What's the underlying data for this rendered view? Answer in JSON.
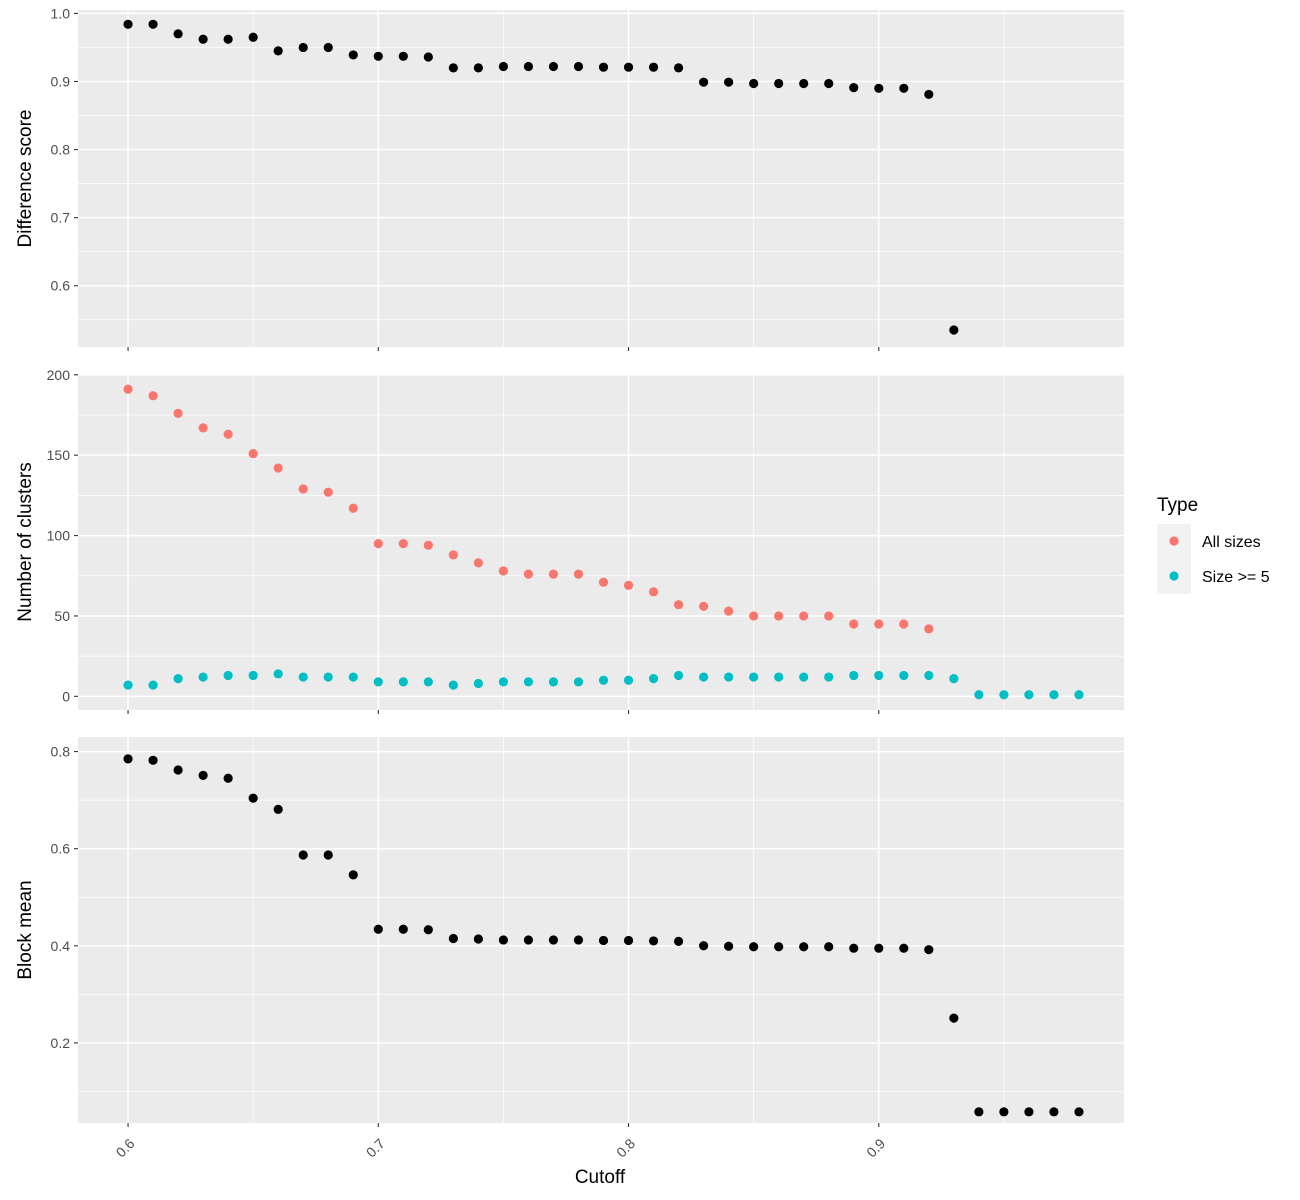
{
  "chart_data": {
    "type": "scatter",
    "x_shared": {
      "label": "Cutoff",
      "range": [
        0.58,
        0.998
      ],
      "ticks": [
        0.6,
        0.7,
        0.8,
        0.9
      ],
      "tick_labels": [
        "0.6",
        "0.7",
        "0.8",
        "0.9"
      ],
      "tick_label_rotation_deg": -45
    },
    "grid": true,
    "panel_background": "#ebebeb",
    "grid_color": "#ffffff",
    "panels": [
      {
        "ylabel": "Difference score",
        "ylim": [
          0.51,
          1.005
        ],
        "yticks": [
          0.6,
          0.7,
          0.8,
          0.9,
          1.0
        ],
        "ytick_labels": [
          "0.6",
          "0.7",
          "0.8",
          "0.9",
          "1.0"
        ],
        "series": [
          {
            "color": "#000000",
            "points": [
              [
                0.6,
                0.984
              ],
              [
                0.61,
                0.984
              ],
              [
                0.62,
                0.97
              ],
              [
                0.63,
                0.962
              ],
              [
                0.64,
                0.962
              ],
              [
                0.65,
                0.965
              ],
              [
                0.66,
                0.945
              ],
              [
                0.67,
                0.95
              ],
              [
                0.68,
                0.95
              ],
              [
                0.69,
                0.939
              ],
              [
                0.7,
                0.937
              ],
              [
                0.71,
                0.937
              ],
              [
                0.72,
                0.936
              ],
              [
                0.73,
                0.92
              ],
              [
                0.74,
                0.92
              ],
              [
                0.75,
                0.922
              ],
              [
                0.76,
                0.922
              ],
              [
                0.77,
                0.922
              ],
              [
                0.78,
                0.922
              ],
              [
                0.79,
                0.921
              ],
              [
                0.8,
                0.921
              ],
              [
                0.81,
                0.921
              ],
              [
                0.82,
                0.92
              ],
              [
                0.83,
                0.899
              ],
              [
                0.84,
                0.899
              ],
              [
                0.85,
                0.897
              ],
              [
                0.86,
                0.897
              ],
              [
                0.87,
                0.897
              ],
              [
                0.88,
                0.897
              ],
              [
                0.89,
                0.891
              ],
              [
                0.9,
                0.89
              ],
              [
                0.91,
                0.89
              ],
              [
                0.92,
                0.881
              ],
              [
                0.93,
                0.535
              ]
            ]
          }
        ]
      },
      {
        "ylabel": "Number of clusters",
        "ylim": [
          -8.5,
          200.5
        ],
        "yticks": [
          0,
          50,
          100,
          150,
          200
        ],
        "ytick_labels": [
          "0",
          "50",
          "100",
          "150",
          "200"
        ],
        "series": [
          {
            "name": "All sizes",
            "color": "#f8766d",
            "points": [
              [
                0.6,
                191
              ],
              [
                0.61,
                187
              ],
              [
                0.62,
                176
              ],
              [
                0.63,
                167
              ],
              [
                0.64,
                163
              ],
              [
                0.65,
                151
              ],
              [
                0.66,
                142
              ],
              [
                0.67,
                129
              ],
              [
                0.68,
                127
              ],
              [
                0.69,
                117
              ],
              [
                0.7,
                95
              ],
              [
                0.71,
                95
              ],
              [
                0.72,
                94
              ],
              [
                0.73,
                88
              ],
              [
                0.74,
                83
              ],
              [
                0.75,
                78
              ],
              [
                0.76,
                76
              ],
              [
                0.77,
                76
              ],
              [
                0.78,
                76
              ],
              [
                0.79,
                71
              ],
              [
                0.8,
                69
              ],
              [
                0.81,
                65
              ],
              [
                0.82,
                57
              ],
              [
                0.83,
                56
              ],
              [
                0.84,
                53
              ],
              [
                0.85,
                50
              ],
              [
                0.86,
                50
              ],
              [
                0.87,
                50
              ],
              [
                0.88,
                50
              ],
              [
                0.89,
                45
              ],
              [
                0.9,
                45
              ],
              [
                0.91,
                45
              ],
              [
                0.92,
                42
              ]
            ]
          },
          {
            "name": "Size >= 5",
            "color": "#00bfc4",
            "points": [
              [
                0.6,
                7
              ],
              [
                0.61,
                7
              ],
              [
                0.62,
                11
              ],
              [
                0.63,
                12
              ],
              [
                0.64,
                13
              ],
              [
                0.65,
                13
              ],
              [
                0.66,
                14
              ],
              [
                0.67,
                12
              ],
              [
                0.68,
                12
              ],
              [
                0.69,
                12
              ],
              [
                0.7,
                9
              ],
              [
                0.71,
                9
              ],
              [
                0.72,
                9
              ],
              [
                0.73,
                7
              ],
              [
                0.74,
                8
              ],
              [
                0.75,
                9
              ],
              [
                0.76,
                9
              ],
              [
                0.77,
                9
              ],
              [
                0.78,
                9
              ],
              [
                0.79,
                10
              ],
              [
                0.8,
                10
              ],
              [
                0.81,
                11
              ],
              [
                0.82,
                13
              ],
              [
                0.83,
                12
              ],
              [
                0.84,
                12
              ],
              [
                0.85,
                12
              ],
              [
                0.86,
                12
              ],
              [
                0.87,
                12
              ],
              [
                0.88,
                12
              ],
              [
                0.89,
                13
              ],
              [
                0.9,
                13
              ],
              [
                0.91,
                13
              ],
              [
                0.92,
                13
              ],
              [
                0.93,
                11
              ],
              [
                0.94,
                1
              ],
              [
                0.95,
                1
              ],
              [
                0.96,
                1
              ],
              [
                0.97,
                1
              ],
              [
                0.98,
                1
              ]
            ]
          }
        ]
      },
      {
        "ylabel": "Block mean",
        "ylim": [
          0.035,
          0.83
        ],
        "yticks": [
          0.2,
          0.4,
          0.6,
          0.8
        ],
        "ytick_labels": [
          "0.2",
          "0.4",
          "0.6",
          "0.8"
        ],
        "series": [
          {
            "color": "#000000",
            "points": [
              [
                0.6,
                0.785
              ],
              [
                0.61,
                0.782
              ],
              [
                0.62,
                0.762
              ],
              [
                0.63,
                0.751
              ],
              [
                0.64,
                0.745
              ],
              [
                0.65,
                0.704
              ],
              [
                0.66,
                0.681
              ],
              [
                0.67,
                0.587
              ],
              [
                0.68,
                0.587
              ],
              [
                0.69,
                0.546
              ],
              [
                0.7,
                0.434
              ],
              [
                0.71,
                0.434
              ],
              [
                0.72,
                0.433
              ],
              [
                0.73,
                0.415
              ],
              [
                0.74,
                0.414
              ],
              [
                0.75,
                0.412
              ],
              [
                0.76,
                0.412
              ],
              [
                0.77,
                0.412
              ],
              [
                0.78,
                0.412
              ],
              [
                0.79,
                0.411
              ],
              [
                0.8,
                0.411
              ],
              [
                0.81,
                0.41
              ],
              [
                0.82,
                0.409
              ],
              [
                0.83,
                0.4
              ],
              [
                0.84,
                0.399
              ],
              [
                0.85,
                0.398
              ],
              [
                0.86,
                0.398
              ],
              [
                0.87,
                0.398
              ],
              [
                0.88,
                0.398
              ],
              [
                0.89,
                0.395
              ],
              [
                0.9,
                0.395
              ],
              [
                0.91,
                0.395
              ],
              [
                0.92,
                0.392
              ],
              [
                0.93,
                0.251
              ],
              [
                0.94,
                0.058
              ],
              [
                0.95,
                0.058
              ],
              [
                0.96,
                0.058
              ],
              [
                0.97,
                0.058
              ],
              [
                0.98,
                0.058
              ]
            ]
          }
        ]
      }
    ],
    "legend": {
      "title": "Type",
      "placement": "right",
      "entries": [
        {
          "label": "All sizes",
          "color": "#f8766d"
        },
        {
          "label": "Size >= 5",
          "color": "#00bfc4"
        }
      ]
    }
  }
}
